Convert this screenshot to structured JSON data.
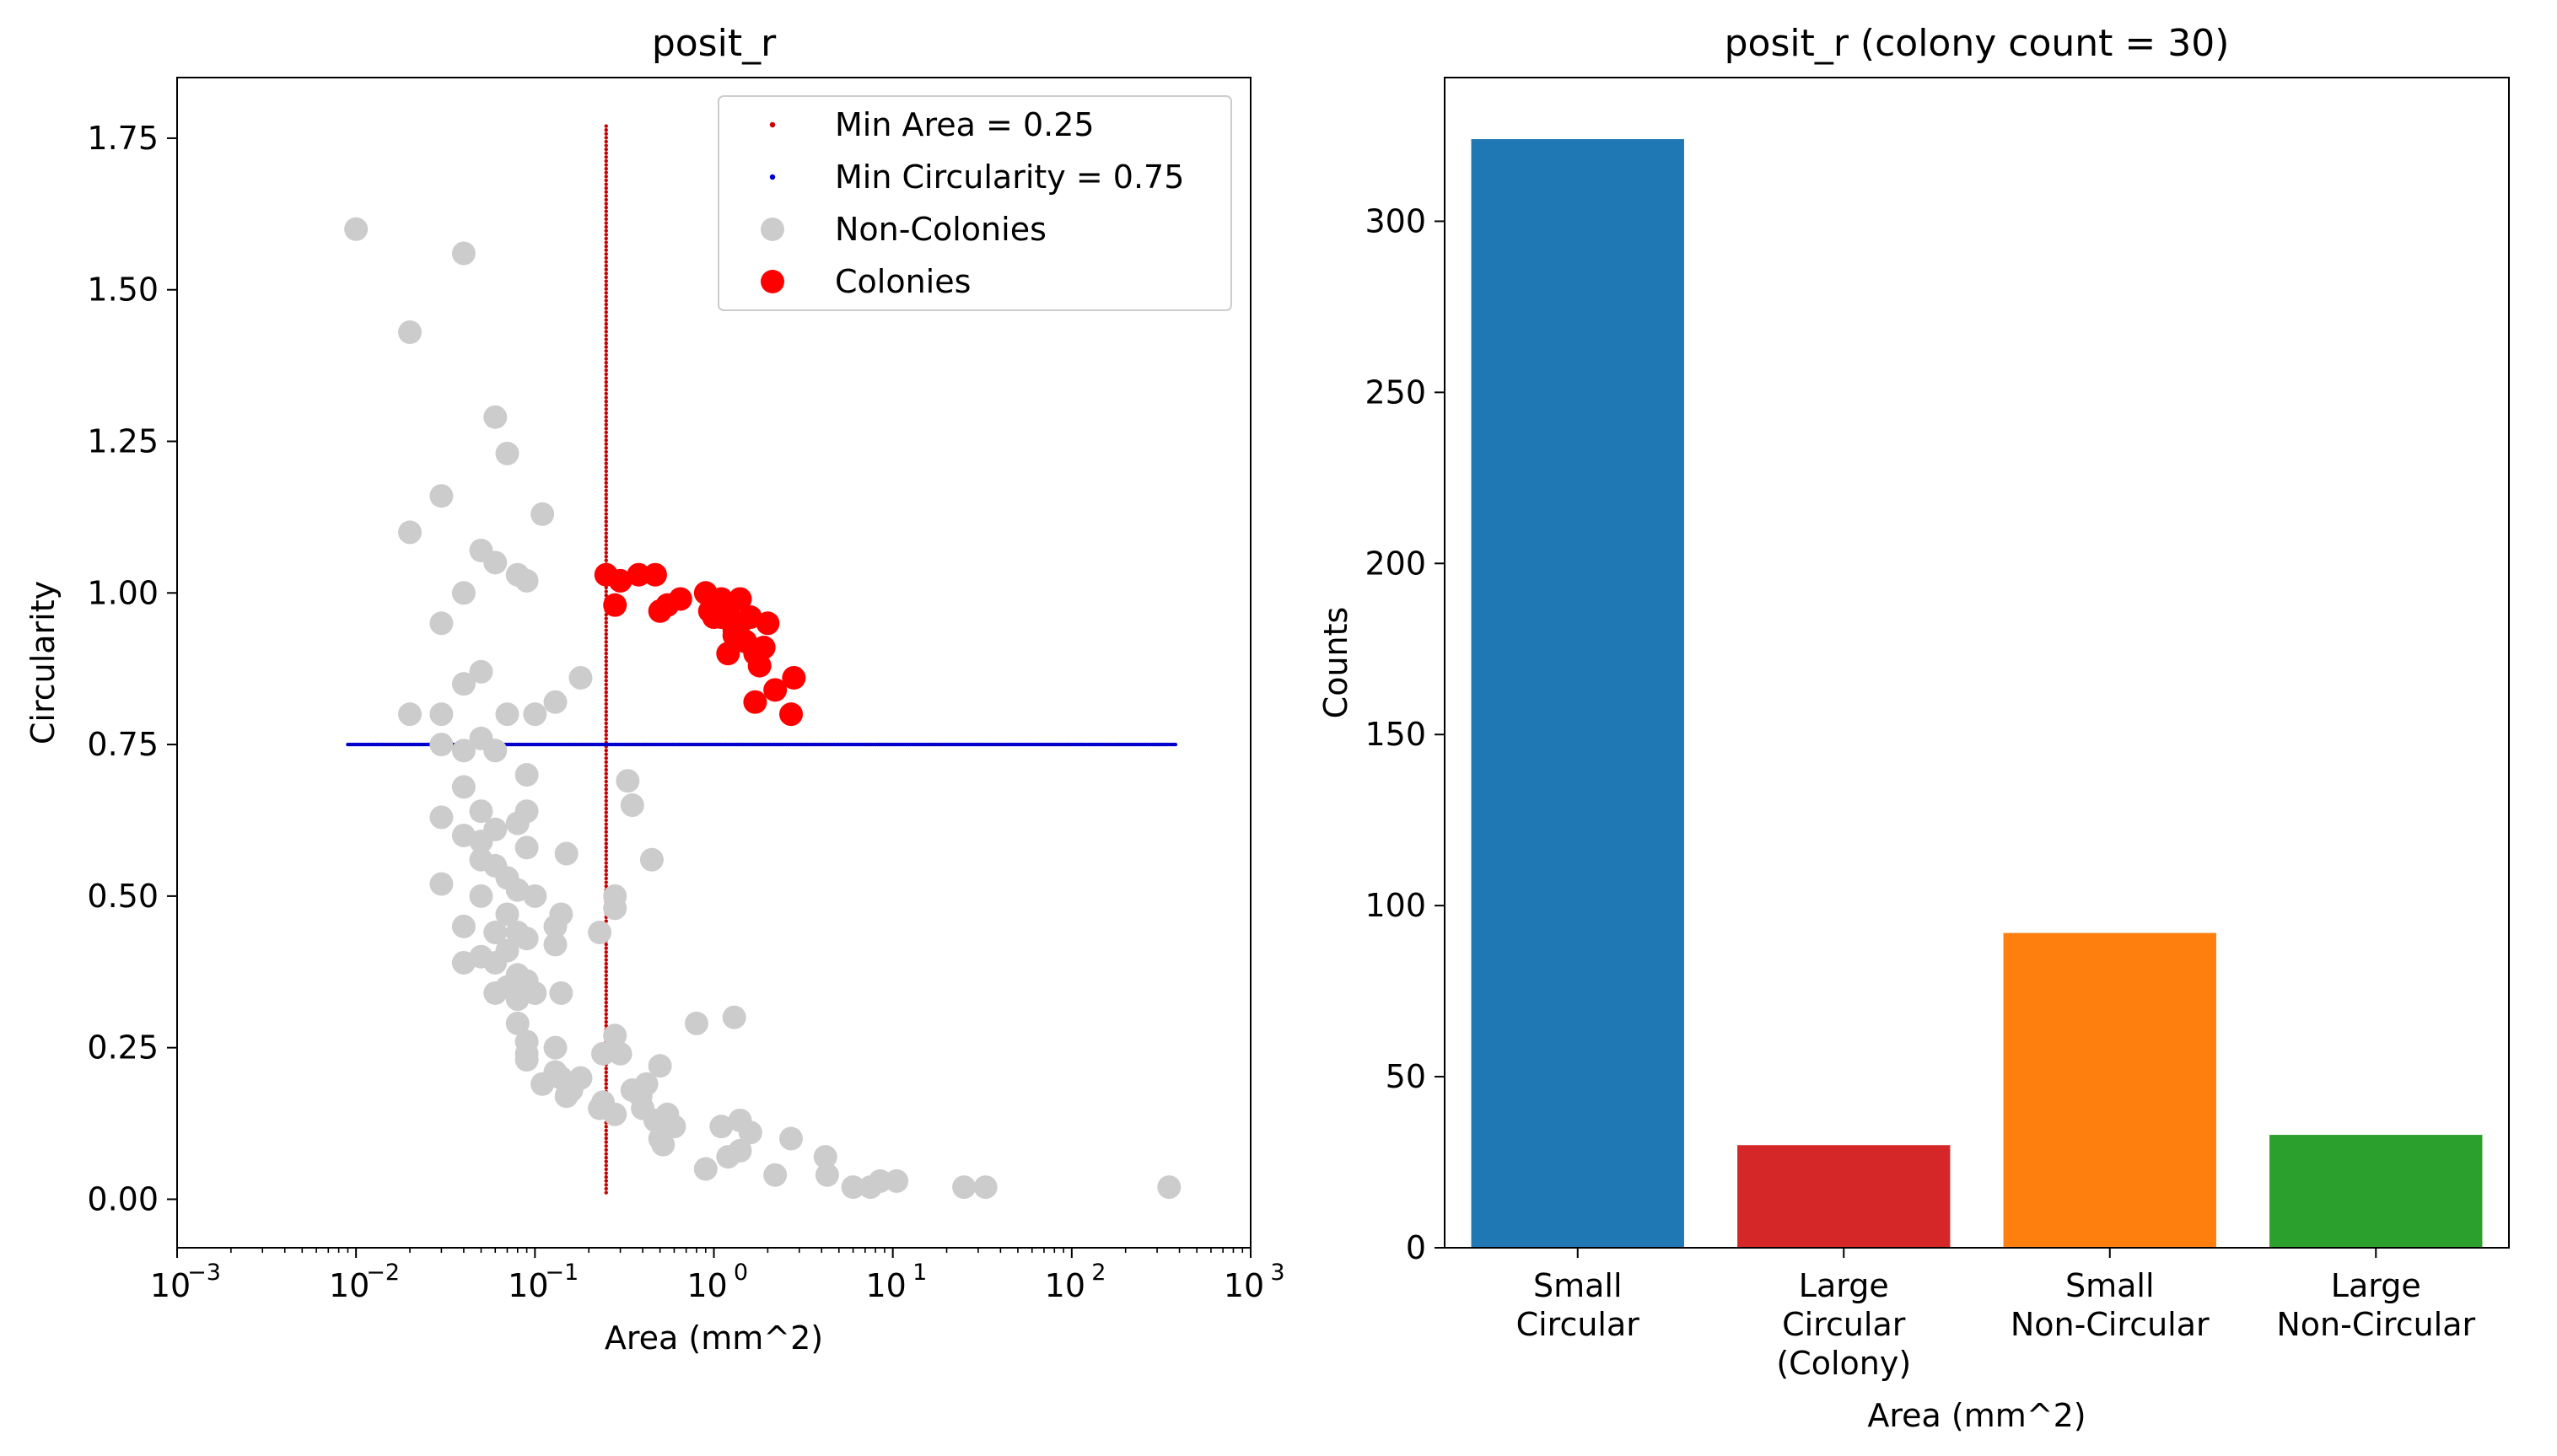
{
  "chart_data": [
    {
      "type": "scatter",
      "title": "posit_r",
      "xlabel": "Area (mm^2)",
      "ylabel": "Circularity",
      "xscale": "log",
      "xlim": [
        0.001,
        1000
      ],
      "ylim": [
        -0.08,
        1.85
      ],
      "x_ticks": [
        {
          "value": 0.001,
          "base": "10",
          "exp": "−3"
        },
        {
          "value": 0.01,
          "base": "10",
          "exp": "−2"
        },
        {
          "value": 0.1,
          "base": "10",
          "exp": "−1"
        },
        {
          "value": 1,
          "base": "10",
          "exp": "0"
        },
        {
          "value": 10,
          "base": "10",
          "exp": "1"
        },
        {
          "value": 100,
          "base": "10",
          "exp": "2"
        },
        {
          "value": 1000,
          "base": "10",
          "exp": "3"
        }
      ],
      "y_ticks": [
        "0.00",
        "0.25",
        "0.50",
        "0.75",
        "1.00",
        "1.25",
        "1.50",
        "1.75"
      ],
      "legend_position": "top-right",
      "legend": [
        {
          "label": "Min Area = 0.25",
          "color": "#cc0000",
          "marker": "small-dot"
        },
        {
          "label": "Min Circularity = 0.75",
          "color": "#0000cc",
          "marker": "small-dot"
        },
        {
          "label": "Non-Colonies",
          "color": "#cccccc",
          "marker": "circle"
        },
        {
          "label": "Colonies",
          "color": "#ff0000",
          "marker": "circle"
        }
      ],
      "threshold_lines": [
        {
          "name": "Min Area = 0.25",
          "orientation": "vertical",
          "value": 0.25,
          "range": [
            0.01,
            1.77
          ],
          "color": "#cc0000"
        },
        {
          "name": "Min Circularity = 0.75",
          "orientation": "horizontal",
          "value": 0.75,
          "range": [
            0.009,
            380
          ],
          "color": "#0000cc"
        }
      ],
      "series": [
        {
          "name": "Non-Colonies",
          "color": "#cccccc",
          "points": [
            [
              0.01,
              1.6
            ],
            [
              0.04,
              1.56
            ],
            [
              0.02,
              1.43
            ],
            [
              0.06,
              1.29
            ],
            [
              0.07,
              1.23
            ],
            [
              0.03,
              1.16
            ],
            [
              0.02,
              1.1
            ],
            [
              0.11,
              1.13
            ],
            [
              0.05,
              1.07
            ],
            [
              0.06,
              1.05
            ],
            [
              0.08,
              1.03
            ],
            [
              0.09,
              1.02
            ],
            [
              0.04,
              1.0
            ],
            [
              0.03,
              0.95
            ],
            [
              0.05,
              0.87
            ],
            [
              0.04,
              0.85
            ],
            [
              0.18,
              0.86
            ],
            [
              0.13,
              0.82
            ],
            [
              0.1,
              0.8
            ],
            [
              0.07,
              0.8
            ],
            [
              0.02,
              0.8
            ],
            [
              0.03,
              0.8
            ],
            [
              0.05,
              0.76
            ],
            [
              0.03,
              0.75
            ],
            [
              0.04,
              0.74
            ],
            [
              0.06,
              0.74
            ],
            [
              0.33,
              0.69
            ],
            [
              0.04,
              0.68
            ],
            [
              0.09,
              0.7
            ],
            [
              0.03,
              0.63
            ],
            [
              0.05,
              0.64
            ],
            [
              0.35,
              0.65
            ],
            [
              0.09,
              0.64
            ],
            [
              0.08,
              0.62
            ],
            [
              0.06,
              0.61
            ],
            [
              0.04,
              0.6
            ],
            [
              0.05,
              0.59
            ],
            [
              0.09,
              0.58
            ],
            [
              0.15,
              0.57
            ],
            [
              0.45,
              0.56
            ],
            [
              0.05,
              0.56
            ],
            [
              0.06,
              0.55
            ],
            [
              0.07,
              0.53
            ],
            [
              0.03,
              0.52
            ],
            [
              0.08,
              0.51
            ],
            [
              0.05,
              0.5
            ],
            [
              0.1,
              0.5
            ],
            [
              0.28,
              0.5
            ],
            [
              0.28,
              0.48
            ],
            [
              0.07,
              0.47
            ],
            [
              0.14,
              0.47
            ],
            [
              0.13,
              0.45
            ],
            [
              0.04,
              0.45
            ],
            [
              0.06,
              0.44
            ],
            [
              0.08,
              0.44
            ],
            [
              0.23,
              0.44
            ],
            [
              0.09,
              0.43
            ],
            [
              0.13,
              0.42
            ],
            [
              0.07,
              0.41
            ],
            [
              0.05,
              0.4
            ],
            [
              0.06,
              0.39
            ],
            [
              0.04,
              0.39
            ],
            [
              0.08,
              0.37
            ],
            [
              0.09,
              0.36
            ],
            [
              0.07,
              0.35
            ],
            [
              0.06,
              0.34
            ],
            [
              0.1,
              0.34
            ],
            [
              0.14,
              0.34
            ],
            [
              0.08,
              0.33
            ],
            [
              1.3,
              0.3
            ],
            [
              0.8,
              0.29
            ],
            [
              0.08,
              0.29
            ],
            [
              0.09,
              0.26
            ],
            [
              0.28,
              0.27
            ],
            [
              0.13,
              0.25
            ],
            [
              0.09,
              0.24
            ],
            [
              0.24,
              0.24
            ],
            [
              0.3,
              0.24
            ],
            [
              0.09,
              0.23
            ],
            [
              0.5,
              0.22
            ],
            [
              0.13,
              0.21
            ],
            [
              0.14,
              0.2
            ],
            [
              0.18,
              0.2
            ],
            [
              0.42,
              0.19
            ],
            [
              0.11,
              0.19
            ],
            [
              0.16,
              0.18
            ],
            [
              0.35,
              0.18
            ],
            [
              0.39,
              0.17
            ],
            [
              0.15,
              0.17
            ],
            [
              0.24,
              0.16
            ],
            [
              0.4,
              0.15
            ],
            [
              0.23,
              0.15
            ],
            [
              0.55,
              0.14
            ],
            [
              0.28,
              0.14
            ],
            [
              0.47,
              0.13
            ],
            [
              1.4,
              0.13
            ],
            [
              1.1,
              0.12
            ],
            [
              0.6,
              0.12
            ],
            [
              1.6,
              0.11
            ],
            [
              2.7,
              0.1
            ],
            [
              0.5,
              0.1
            ],
            [
              0.52,
              0.09
            ],
            [
              1.4,
              0.08
            ],
            [
              1.2,
              0.07
            ],
            [
              4.2,
              0.07
            ],
            [
              0.9,
              0.05
            ],
            [
              2.2,
              0.04
            ],
            [
              4.3,
              0.04
            ],
            [
              8.5,
              0.03
            ],
            [
              10.5,
              0.03
            ],
            [
              7.5,
              0.02
            ],
            [
              6.0,
              0.02
            ],
            [
              25,
              0.02
            ],
            [
              33,
              0.02
            ],
            [
              350,
              0.02
            ]
          ]
        },
        {
          "name": "Colonies",
          "color": "#ff0000",
          "points": [
            [
              0.25,
              1.03
            ],
            [
              0.3,
              1.02
            ],
            [
              0.38,
              1.03
            ],
            [
              0.47,
              1.03
            ],
            [
              0.28,
              0.98
            ],
            [
              0.5,
              0.97
            ],
            [
              0.55,
              0.98
            ],
            [
              0.65,
              0.99
            ],
            [
              0.9,
              1.0
            ],
            [
              1.0,
              0.98
            ],
            [
              1.1,
              0.99
            ],
            [
              1.0,
              0.96
            ],
            [
              1.2,
              0.97
            ],
            [
              1.4,
              0.99
            ],
            [
              1.3,
              0.94
            ],
            [
              1.4,
              0.95
            ],
            [
              2.0,
              0.95
            ],
            [
              1.5,
              0.92
            ],
            [
              1.2,
              0.9
            ],
            [
              1.7,
              0.9
            ],
            [
              1.8,
              0.88
            ],
            [
              2.8,
              0.86
            ],
            [
              2.2,
              0.84
            ],
            [
              1.7,
              0.82
            ],
            [
              2.7,
              0.8
            ],
            [
              1.1,
              0.96
            ],
            [
              1.3,
              0.93
            ],
            [
              0.95,
              0.97
            ],
            [
              1.6,
              0.96
            ],
            [
              1.9,
              0.91
            ]
          ]
        }
      ]
    },
    {
      "type": "bar",
      "title": "posit_r (colony count = 30)",
      "xlabel": "Area (mm^2)",
      "ylabel": "Counts",
      "ylim": [
        0,
        342
      ],
      "y_ticks": [
        "0",
        "50",
        "100",
        "150",
        "200",
        "250",
        "300"
      ],
      "categories": [
        [
          "Small",
          "Circular"
        ],
        [
          "Large",
          "Circular",
          "(Colony)"
        ],
        [
          "Small",
          "Non-Circular"
        ],
        [
          "Large",
          "Non-Circular"
        ]
      ],
      "values": [
        324,
        30,
        92,
        33
      ],
      "colors": [
        "#1f77b4",
        "#d62728",
        "#ff7f0e",
        "#2ca02c"
      ]
    }
  ]
}
